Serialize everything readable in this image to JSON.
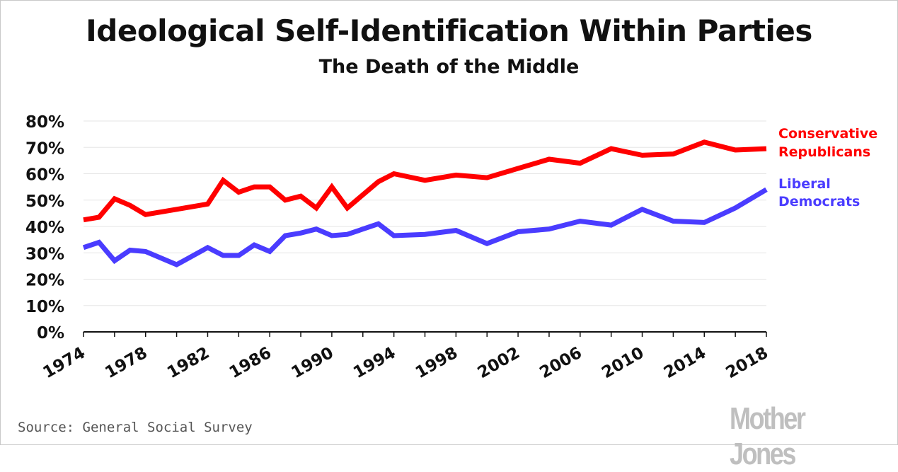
{
  "title": "Ideological Self-Identification Within Parties",
  "subtitle": "The Death of the Middle",
  "source": "Source: General Social Survey",
  "logo_text": "Mother Jones",
  "colors": {
    "republicans": "#ff0000",
    "democrats": "#4a3cff",
    "grid": "#e5e5e5",
    "axis": "#111111"
  },
  "chart_data": {
    "type": "line",
    "title": "Ideological Self-Identification Within Parties",
    "subtitle": "The Death of the Middle",
    "xlabel": "",
    "ylabel": "",
    "xlim": [
      1974,
      2018
    ],
    "ylim": [
      0,
      80
    ],
    "y_ticks": [
      "0%",
      "10%",
      "20%",
      "30%",
      "40%",
      "50%",
      "60%",
      "70%",
      "80%"
    ],
    "x_ticks": [
      "1974",
      "1978",
      "1982",
      "1986",
      "1990",
      "1994",
      "1998",
      "2002",
      "2006",
      "2010",
      "2014",
      "2018"
    ],
    "grid": true,
    "legend": "right, direct labels",
    "series": [
      {
        "name": "Conservative Republicans",
        "label_lines": [
          "Conservative",
          "Republicans"
        ],
        "color": "#ff0000",
        "x": [
          1974,
          1975,
          1976,
          1977,
          1978,
          1980,
          1982,
          1983,
          1984,
          1985,
          1986,
          1987,
          1988,
          1989,
          1990,
          1991,
          1993,
          1994,
          1996,
          1998,
          2000,
          2002,
          2004,
          2006,
          2008,
          2010,
          2012,
          2014,
          2016,
          2018
        ],
        "y": [
          42.5,
          43.5,
          50.5,
          48,
          44.5,
          46.5,
          48.5,
          57.5,
          53,
          55,
          55,
          50,
          51.5,
          47,
          55,
          47,
          57,
          60,
          57.5,
          59.5,
          58.5,
          62,
          65.5,
          64,
          69.5,
          67,
          67.5,
          72,
          69,
          69.5
        ]
      },
      {
        "name": "Liberal Democrats",
        "label_lines": [
          "Liberal",
          "Democrats"
        ],
        "color": "#4a3cff",
        "x": [
          1974,
          1975,
          1976,
          1977,
          1978,
          1980,
          1982,
          1983,
          1984,
          1985,
          1986,
          1987,
          1988,
          1989,
          1990,
          1991,
          1993,
          1994,
          1996,
          1998,
          2000,
          2002,
          2004,
          2006,
          2008,
          2010,
          2012,
          2014,
          2016,
          2018
        ],
        "y": [
          32,
          34,
          27,
          31,
          30.5,
          25.5,
          32,
          29,
          29,
          33,
          30.5,
          36.5,
          37.5,
          39,
          36.5,
          37,
          41,
          36.5,
          37,
          38.5,
          33.5,
          38,
          39,
          42,
          40.5,
          46.5,
          42,
          41.5,
          47,
          54
        ]
      }
    ]
  }
}
